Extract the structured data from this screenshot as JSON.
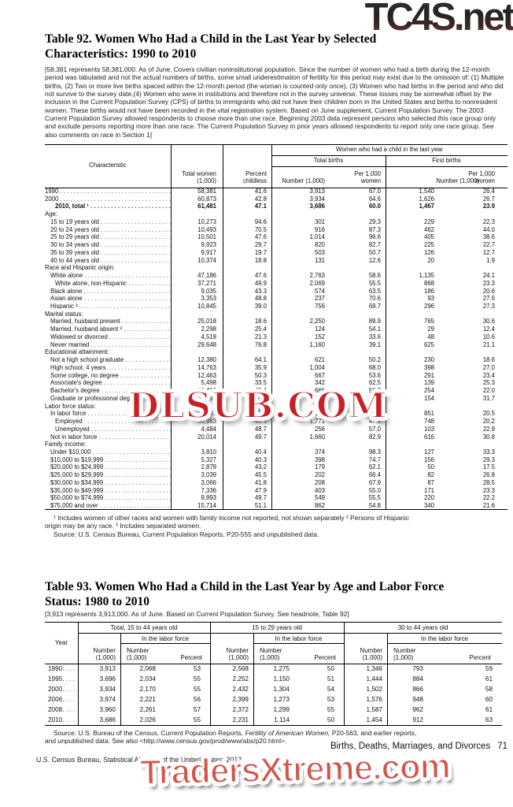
{
  "watermarks": {
    "top": "TC4S.net",
    "middle": "DLSUB.COM",
    "bottom": "TradersXtreme.com",
    "red": "#c92027"
  },
  "table92": {
    "title1": "Table 92. Women Who Had a Child in the Last Year by Selected",
    "title2": "Characteristics: 1990 to 2010",
    "headnote": "[58,381 represents 58,381,000. As of June. Covers civilian noninstitutional population. Since the number of women who had a birth during the 12-month period was tabulated and not the actual numbers of births, some small underestimation of fertility for this period may exist due to the omission of: (1) Multiple births, (2) Two or more live births spaced within the 12-month period (the woman is counted only once), (3) Women who had births in the period and who did not survive to the survey date,(4) Women who were in institutions and therefore not in the survey universe. These losses may be somewhat offset by the inclusion in the Current Population Survey (CPS) of births to immigrants who did not have their children born in the United States and births to nonresident women. These births would not have been recorded in the vital registration system. Based on June supplement, Current Population Survey. The 2003 Current Population Survey allowed respondents to choose more than one race. Beginning 2003 data represent persons who selected this race group only and exclude persons reporting more than one race. The Current Population Survey in prior years allowed respondents to report only one race group. See also comments on race in Section 1]",
    "header": {
      "characteristic": "Characteristic",
      "total_women": "Total women (1,000)",
      "percent_childless": "Percent childless",
      "spanner": "Women who had a child in the last year",
      "total_births": "Total births",
      "first_births": "First births",
      "number": "Number (1,000)",
      "per1000": "Per 1,000 women"
    },
    "rows": [
      [
        "1990",
        0,
        0,
        [
          "58,381",
          "41.6",
          "3,913",
          "67.0",
          "1,540",
          "26.4"
        ]
      ],
      [
        "2000",
        0,
        0,
        [
          "60,873",
          "42.8",
          "3,934",
          "64.6",
          "1,626",
          "26.7"
        ]
      ],
      [
        "2010, total ¹",
        2,
        1,
        [
          "61,481",
          "47.1",
          "3,686",
          "60.0",
          "1,467",
          "23.9"
        ]
      ],
      [
        "Age:",
        0,
        0,
        null
      ],
      [
        "15 to 19 years old",
        1,
        0,
        [
          "10,273",
          "94.6",
          "301",
          "29.3",
          "229",
          "22.3"
        ]
      ],
      [
        "20 to 24 years old",
        1,
        0,
        [
          "10,493",
          "70.5",
          "916",
          "87.3",
          "462",
          "44.0"
        ]
      ],
      [
        "25 to 29 years old",
        1,
        0,
        [
          "10,501",
          "47.6",
          "1,014",
          "96.6",
          "405",
          "38.6"
        ]
      ],
      [
        "30 to 34 years old",
        1,
        0,
        [
          "9,923",
          "29.7",
          "820",
          "82.7",
          "225",
          "22.7"
        ]
      ],
      [
        "35 to 39 years old",
        1,
        0,
        [
          "9,917",
          "19.7",
          "503",
          "50.7",
          "126",
          "12.7"
        ]
      ],
      [
        "40 to 44 years old",
        1,
        0,
        [
          "10,374",
          "18.8",
          "131",
          "12.6",
          "20",
          "1.9"
        ]
      ],
      [
        "Race and Hispanic origin:",
        0,
        0,
        null
      ],
      [
        "White alone",
        1,
        0,
        [
          "47,186",
          "47.6",
          "2,763",
          "58.6",
          "1,135",
          "24.1"
        ]
      ],
      [
        "White alone, non-Hispanic",
        2,
        0,
        [
          "37,271",
          "49.9",
          "2,069",
          "55.5",
          "868",
          "23.3"
        ]
      ],
      [
        "Black alone",
        1,
        0,
        [
          "9,035",
          "43.3",
          "574",
          "63.5",
          "186",
          "20.6"
        ]
      ],
      [
        "Asian alone",
        1,
        0,
        [
          "3,353",
          "48.8",
          "237",
          "70.6",
          "93",
          "27.6"
        ]
      ],
      [
        "Hispanic ²",
        1,
        0,
        [
          "10,845",
          "39.0",
          "756",
          "69.7",
          "296",
          "27.3"
        ]
      ],
      [
        "Marital status:",
        0,
        0,
        null
      ],
      [
        "Married, husband present",
        1,
        0,
        [
          "25,018",
          "18.6",
          "2,250",
          "89.9",
          "765",
          "30.6"
        ]
      ],
      [
        "Married, husband absent ³",
        1,
        0,
        [
          "2,298",
          "25.4",
          "124",
          "54.1",
          "29",
          "12.4"
        ]
      ],
      [
        "Widowed or divorced",
        1,
        0,
        [
          "4,518",
          "21.3",
          "152",
          "33.6",
          "48",
          "10.6"
        ]
      ],
      [
        "Never married",
        1,
        0,
        [
          "29,648",
          "76.8",
          "1,160",
          "39.1",
          "625",
          "21.1"
        ]
      ],
      [
        "Educational attainment:",
        0,
        0,
        null
      ],
      [
        "Not a high school graduate",
        1,
        0,
        [
          "12,380",
          "64.1",
          "621",
          "50.2",
          "230",
          "18.6"
        ]
      ],
      [
        "High school, 4 years",
        1,
        0,
        [
          "14,763",
          "35.9",
          "1,004",
          "68.0",
          "398",
          "27.0"
        ]
      ],
      [
        "Some college, no degree",
        1,
        0,
        [
          "12,463",
          "50.3",
          "667",
          "53.6",
          "291",
          "23.4"
        ]
      ],
      [
        "Associate's degree",
        1,
        0,
        [
          "5,498",
          "33.5",
          "342",
          "62.5",
          "139",
          "25.3"
        ]
      ],
      [
        "Bachelor's degree",
        1,
        0,
        [
          "11,412",
          "45.4",
          "666",
          "58.7",
          "254",
          "22.0"
        ]
      ],
      [
        "Graduate or professional degree",
        1,
        0,
        [
          "4,965",
          "38.1",
          "386",
          "77.3",
          "154",
          "31.7"
        ]
      ],
      [
        "Labor force status:",
        0,
        0,
        null
      ],
      [
        "In labor force",
        1,
        0,
        [
          "41,467",
          "45.8",
          "2,026",
          "48.9",
          "851",
          "20.5"
        ]
      ],
      [
        "Employed",
        2,
        0,
        [
          "36,983",
          "45.5",
          "1,771",
          "47.9",
          "748",
          "20.2"
        ]
      ],
      [
        "Unemployed",
        2,
        0,
        [
          "4,484",
          "48.7",
          "256",
          "57.0",
          "103",
          "22.9"
        ]
      ],
      [
        "Not in labor force",
        1,
        0,
        [
          "20,014",
          "49.7",
          "1,660",
          "82.9",
          "616",
          "30.8"
        ]
      ],
      [
        "Family income:",
        0,
        0,
        null
      ],
      [
        "Under $10,000",
        1,
        0,
        [
          "3,810",
          "40.4",
          "374",
          "98.3",
          "127",
          "33.3"
        ]
      ],
      [
        "$10,000 to $19,999",
        1,
        0,
        [
          "5,327",
          "40.3",
          "398",
          "74.7",
          "156",
          "29.3"
        ]
      ],
      [
        "$20,000 to $24,999",
        1,
        0,
        [
          "2,879",
          "43.2",
          "179",
          "62.1",
          "50",
          "17.5"
        ]
      ],
      [
        "$25,000 to $29,999",
        1,
        0,
        [
          "3,039",
          "45.5",
          "202",
          "66.4",
          "82",
          "26.8"
        ]
      ],
      [
        "$30,000 to $34,999",
        1,
        0,
        [
          "3,066",
          "41.8",
          "208",
          "67.9",
          "87",
          "28.5"
        ]
      ],
      [
        "$35,000 to $49,999",
        1,
        0,
        [
          "7,336",
          "47.9",
          "403",
          "55.0",
          "171",
          "23.3"
        ]
      ],
      [
        "$50,000 to $74,999",
        1,
        0,
        [
          "9,893",
          "49.7",
          "549",
          "55.5",
          "220",
          "22.2"
        ]
      ],
      [
        "$75,000 and over",
        1,
        0,
        [
          "15,714",
          "51.1",
          "862",
          "54.8",
          "340",
          "21.6"
        ]
      ]
    ],
    "footnote_line1": "¹ Includes women of other races and women with family income not reported, not shown separately ² Persons of Hispanic",
    "footnote_line2": "origin may be any race. ³ Includes separated women.",
    "source": "Source: U.S. Census Bureau, Current Population Reports, P20-555 and unpublished data."
  },
  "table93": {
    "title1": "Table 93. Women Who Had a Child in the Last Year by Age and Labor Force",
    "title2": "Status: 1980 to 2010",
    "headnote": "[3,913 represents 3,913,000. As of June. Based on Current Population Survey. See headnote, Table 92]",
    "header": {
      "year": "Year",
      "group1": "Total, 15 to 44 years old",
      "group2": "15 to 29 years old",
      "group3": "30 to 44 years old",
      "in_labor_force": "In the labor force",
      "number": "Number (1,000)",
      "percent": "Percent"
    },
    "rows": [
      [
        "1990",
        "3,913",
        "2,068",
        "53",
        "2,568",
        "1,275",
        "50",
        "1,346",
        "793",
        "59"
      ],
      [
        "1995",
        "3,696",
        "2,034",
        "55",
        "2,252",
        "1,150",
        "51",
        "1,444",
        "884",
        "61"
      ],
      [
        "2000",
        "3,934",
        "2,170",
        "55",
        "2,432",
        "1,304",
        "54",
        "1,502",
        "866",
        "58"
      ],
      [
        "2006",
        "3,974",
        "2,221",
        "56",
        "2,399",
        "1,273",
        "53",
        "1,576",
        "948",
        "60"
      ],
      [
        "2008",
        "3,960",
        "2,261",
        "57",
        "2,372",
        "1,299",
        "55",
        "1,587",
        "962",
        "61"
      ],
      [
        "2010",
        "3,686",
        "2,026",
        "55",
        "2,231",
        "1,114",
        "50",
        "1,454",
        "912",
        "63"
      ]
    ],
    "source_pre": "Source: U.S. Bureau of the Census, Current Population Reports, ",
    "source_italic": "Fertility of American Women,",
    "source_post": " P20-563, and earlier reports,",
    "source_line2": "and unpublished data. See also <http://www.census.gov/prod/www/abs/p20.html>."
  },
  "footer": {
    "section_title": "Births, Deaths, Marriages, and Divorces",
    "page_number": "71",
    "imprint": "U.S. Census Bureau, Statistical Abstract of the United States: 2012"
  }
}
